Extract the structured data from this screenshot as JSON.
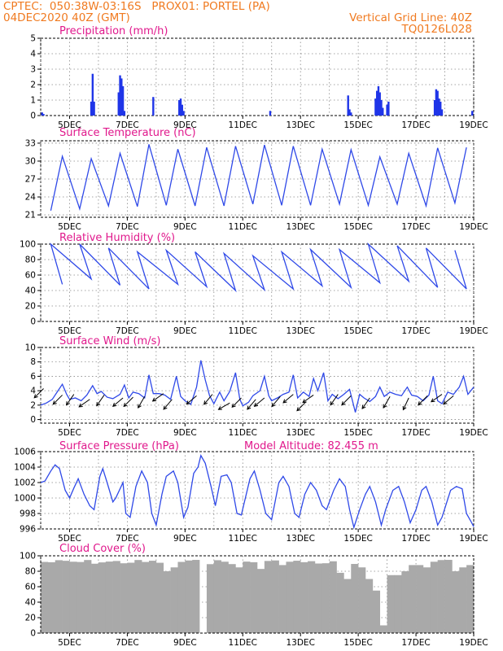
{
  "header": {
    "line1_left": "CPTEC:  050:38W-03:16S   PROX01: PORTEL (PA)",
    "line2_left": "04DEC2020 40Z (GMT)",
    "line2_right": "Vertical Grid Line: 40Z",
    "line3_right": "TQ0126L028"
  },
  "colors": {
    "header": "#f07a20",
    "title": "#e0188c",
    "line": "#2f49e8",
    "bar": "#1f35e8",
    "cloud": "#a9a9a9",
    "grid": "#888888"
  },
  "chart_data": [
    {
      "type": "bar",
      "title": "Precipitation (mm/h)",
      "xcategories": [
        "5DEC",
        "7DEC",
        "9DEC",
        "11DEC",
        "13DEC",
        "15DEC",
        "17DEC",
        "19DEC"
      ],
      "ylim": [
        0,
        5
      ],
      "yticks": [
        0,
        1,
        2,
        3,
        4,
        5
      ],
      "t_range": [
        4.0,
        19.0
      ],
      "bars": [
        [
          4.05,
          0.2
        ],
        [
          4.1,
          0.1
        ],
        [
          5.75,
          0.9
        ],
        [
          5.8,
          2.7
        ],
        [
          5.85,
          0.9
        ],
        [
          6.7,
          1.5
        ],
        [
          6.75,
          2.6
        ],
        [
          6.8,
          2.4
        ],
        [
          6.85,
          1.9
        ],
        [
          6.9,
          0.3
        ],
        [
          7.9,
          1.2
        ],
        [
          8.8,
          1.0
        ],
        [
          8.85,
          1.1
        ],
        [
          8.9,
          0.7
        ],
        [
          8.95,
          0.3
        ],
        [
          11.95,
          0.3
        ],
        [
          14.65,
          1.3
        ],
        [
          14.7,
          0.4
        ],
        [
          14.75,
          0.2
        ],
        [
          15.6,
          1.1
        ],
        [
          15.65,
          1.6
        ],
        [
          15.7,
          1.9
        ],
        [
          15.75,
          1.5
        ],
        [
          15.8,
          1.0
        ],
        [
          15.85,
          0.5
        ],
        [
          16.0,
          0.7
        ],
        [
          16.05,
          0.9
        ],
        [
          17.65,
          1.0
        ],
        [
          17.7,
          1.7
        ],
        [
          17.75,
          1.6
        ],
        [
          17.8,
          1.1
        ],
        [
          17.85,
          0.9
        ],
        [
          17.9,
          0.4
        ],
        [
          18.95,
          0.3
        ]
      ]
    },
    {
      "type": "line",
      "title": "Surface Temperature (nC)",
      "xcategories": [
        "5DEC",
        "7DEC",
        "9DEC",
        "11DEC",
        "13DEC",
        "15DEC",
        "17DEC",
        "19DEC"
      ],
      "ylim": [
        20.6,
        33.4
      ],
      "yticks": [
        21,
        24,
        27,
        30,
        33
      ],
      "t_range": [
        4.0,
        19.0
      ],
      "daily": {
        "start": 4.0,
        "mins": [
          21.7,
          22.0,
          22.5,
          22.4,
          22.6,
          22.5,
          22.5,
          22.8,
          22.6,
          22.6,
          22.8,
          22.6,
          22.8,
          22.5,
          23.0
        ],
        "maxs": [
          30.8,
          30.4,
          31.3,
          32.8,
          32.0,
          32.3,
          32.5,
          32.7,
          32.5,
          32.0,
          31.9,
          30.7,
          31.3,
          32.2,
          32.3
        ],
        "min_phase": 0.35,
        "max_phase": 0.75
      },
      "points": []
    },
    {
      "type": "line",
      "title": "Relative Humidity (%)",
      "xcategories": [
        "5DEC",
        "7DEC",
        "9DEC",
        "11DEC",
        "13DEC",
        "15DEC",
        "17DEC",
        "19DEC"
      ],
      "ylim": [
        0,
        100
      ],
      "yticks": [
        0,
        20,
        40,
        60,
        80,
        100
      ],
      "t_range": [
        4.0,
        19.0
      ],
      "daily": {
        "start": 4.0,
        "mins": [
          48,
          55,
          47,
          42,
          48,
          45,
          40,
          41,
          42,
          46,
          44,
          50,
          52,
          44,
          42
        ],
        "maxs": [
          100,
          100,
          95,
          90,
          92,
          90,
          88,
          85,
          90,
          93,
          93,
          100,
          98,
          95,
          92
        ],
        "min_phase": 0.75,
        "max_phase": 0.35
      },
      "points": []
    },
    {
      "type": "line",
      "title": "Surface Wind (m/s)",
      "xcategories": [
        "5DEC",
        "7DEC",
        "9DEC",
        "11DEC",
        "13DEC",
        "15DEC",
        "17DEC",
        "19DEC"
      ],
      "ylim": [
        -0.5,
        10
      ],
      "yticks": [
        0,
        2,
        4,
        6,
        8,
        10
      ],
      "t_range": [
        4.0,
        19.0
      ],
      "points": [
        [
          4.0,
          2.0
        ],
        [
          4.2,
          2.3
        ],
        [
          4.4,
          2.8
        ],
        [
          4.6,
          4.0
        ],
        [
          4.75,
          4.9
        ],
        [
          4.9,
          3.5
        ],
        [
          5.0,
          2.8
        ],
        [
          5.2,
          3.0
        ],
        [
          5.4,
          2.6
        ],
        [
          5.6,
          3.4
        ],
        [
          5.8,
          4.7
        ],
        [
          5.95,
          3.6
        ],
        [
          6.1,
          3.9
        ],
        [
          6.3,
          3.1
        ],
        [
          6.5,
          2.9
        ],
        [
          6.75,
          3.5
        ],
        [
          6.9,
          4.8
        ],
        [
          7.05,
          3.0
        ],
        [
          7.2,
          3.8
        ],
        [
          7.4,
          3.6
        ],
        [
          7.6,
          3.0
        ],
        [
          7.75,
          6.2
        ],
        [
          7.9,
          3.6
        ],
        [
          8.1,
          3.6
        ],
        [
          8.3,
          3.4
        ],
        [
          8.5,
          2.8
        ],
        [
          8.7,
          6.0
        ],
        [
          8.85,
          3.2
        ],
        [
          9.0,
          2.6
        ],
        [
          9.2,
          2.1
        ],
        [
          9.4,
          4.5
        ],
        [
          9.55,
          8.2
        ],
        [
          9.7,
          5.5
        ],
        [
          9.85,
          3.3
        ],
        [
          10.0,
          2.2
        ],
        [
          10.2,
          3.8
        ],
        [
          10.35,
          2.6
        ],
        [
          10.55,
          3.9
        ],
        [
          10.75,
          6.5
        ],
        [
          10.9,
          2.8
        ],
        [
          11.0,
          1.9
        ],
        [
          11.2,
          2.4
        ],
        [
          11.35,
          3.3
        ],
        [
          11.6,
          4.0
        ],
        [
          11.75,
          6.0
        ],
        [
          11.9,
          3.3
        ],
        [
          12.0,
          2.6
        ],
        [
          12.2,
          3.0
        ],
        [
          12.4,
          3.5
        ],
        [
          12.6,
          3.8
        ],
        [
          12.75,
          6.2
        ],
        [
          12.9,
          3.0
        ],
        [
          13.1,
          3.8
        ],
        [
          13.3,
          3.2
        ],
        [
          13.45,
          5.7
        ],
        [
          13.6,
          4.0
        ],
        [
          13.8,
          6.5
        ],
        [
          13.95,
          2.6
        ],
        [
          14.1,
          3.5
        ],
        [
          14.3,
          2.9
        ],
        [
          14.5,
          3.5
        ],
        [
          14.7,
          4.2
        ],
        [
          14.9,
          1.0
        ],
        [
          15.05,
          3.5
        ],
        [
          15.2,
          3.0
        ],
        [
          15.4,
          2.5
        ],
        [
          15.6,
          3.2
        ],
        [
          15.75,
          4.5
        ],
        [
          15.9,
          3.2
        ],
        [
          16.1,
          3.8
        ],
        [
          16.3,
          3.5
        ],
        [
          16.5,
          3.3
        ],
        [
          16.7,
          4.5
        ],
        [
          16.85,
          3.4
        ],
        [
          17.05,
          3.2
        ],
        [
          17.25,
          2.6
        ],
        [
          17.45,
          3.4
        ],
        [
          17.6,
          6.0
        ],
        [
          17.75,
          2.6
        ],
        [
          17.9,
          2.2
        ],
        [
          18.1,
          3.8
        ],
        [
          18.3,
          3.5
        ],
        [
          18.5,
          4.5
        ],
        [
          18.65,
          6.0
        ],
        [
          18.8,
          3.5
        ],
        [
          19.0,
          4.5
        ]
      ],
      "arrows": [
        [
          4.1,
          4.3,
          225
        ],
        [
          4.75,
          3.4,
          225
        ],
        [
          5.15,
          3.5,
          235
        ],
        [
          5.7,
          2.8,
          215
        ],
        [
          6.2,
          3.4,
          235
        ],
        [
          6.85,
          3.0,
          220
        ],
        [
          7.2,
          3.1,
          225
        ],
        [
          7.6,
          3.2,
          240
        ],
        [
          8.25,
          3.6,
          215
        ],
        [
          8.55,
          2.8,
          230
        ],
        [
          9.4,
          3.3,
          220
        ],
        [
          9.95,
          3.5,
          230
        ],
        [
          10.55,
          2.3,
          210
        ],
        [
          10.95,
          3.0,
          225
        ],
        [
          11.45,
          2.8,
          230
        ],
        [
          11.75,
          3.0,
          220
        ],
        [
          12.3,
          3.2,
          230
        ],
        [
          12.75,
          3.5,
          220
        ],
        [
          13.2,
          2.5,
          225
        ],
        [
          13.45,
          3.4,
          215
        ],
        [
          14.3,
          3.5,
          235
        ],
        [
          14.75,
          3.3,
          225
        ],
        [
          15.4,
          3.0,
          235
        ],
        [
          16.1,
          3.2,
          240
        ],
        [
          16.75,
          3.0,
          245
        ],
        [
          17.4,
          3.3,
          225
        ],
        [
          17.9,
          3.5,
          215
        ],
        [
          18.3,
          3.3,
          220
        ]
      ]
    },
    {
      "type": "line",
      "title": "Surface Pressure (hPa)",
      "annotation": "Model Altitude: 82.455 m",
      "xcategories": [
        "5DEC",
        "7DEC",
        "9DEC",
        "11DEC",
        "13DEC",
        "15DEC",
        "17DEC",
        "19DEC"
      ],
      "ylim": [
        996,
        1006
      ],
      "yticks": [
        996,
        998,
        1000,
        1002,
        1004,
        1006
      ],
      "t_range": [
        4.0,
        19.0
      ],
      "points": [
        [
          4.0,
          1002.0
        ],
        [
          4.15,
          1002.2
        ],
        [
          4.35,
          1003.5
        ],
        [
          4.5,
          1004.3
        ],
        [
          4.65,
          1003.8
        ],
        [
          4.85,
          1001.0
        ],
        [
          5.0,
          1000.0
        ],
        [
          5.15,
          1001.3
        ],
        [
          5.3,
          1002.5
        ],
        [
          5.5,
          1000.5
        ],
        [
          5.7,
          999.0
        ],
        [
          5.85,
          998.5
        ],
        [
          6.05,
          1002.8
        ],
        [
          6.15,
          1003.8
        ],
        [
          6.3,
          1002.0
        ],
        [
          6.5,
          999.5
        ],
        [
          6.6,
          1000.0
        ],
        [
          6.85,
          1002.0
        ],
        [
          6.95,
          998.0
        ],
        [
          7.1,
          997.5
        ],
        [
          7.3,
          1001.5
        ],
        [
          7.5,
          1003.5
        ],
        [
          7.7,
          1002.0
        ],
        [
          7.85,
          998.0
        ],
        [
          8.0,
          996.5
        ],
        [
          8.2,
          1000.5
        ],
        [
          8.35,
          1002.8
        ],
        [
          8.6,
          1003.5
        ],
        [
          8.75,
          1002.0
        ],
        [
          8.95,
          997.5
        ],
        [
          9.1,
          998.8
        ],
        [
          9.3,
          1003.2
        ],
        [
          9.45,
          1004.0
        ],
        [
          9.55,
          1005.5
        ],
        [
          9.7,
          1004.5
        ],
        [
          9.9,
          1001.5
        ],
        [
          10.05,
          999.0
        ],
        [
          10.25,
          1002.8
        ],
        [
          10.45,
          1003.0
        ],
        [
          10.6,
          1002.0
        ],
        [
          10.8,
          998.0
        ],
        [
          10.95,
          997.8
        ],
        [
          11.25,
          1002.5
        ],
        [
          11.4,
          1003.5
        ],
        [
          11.6,
          1001.0
        ],
        [
          11.8,
          998.0
        ],
        [
          12.0,
          997.2
        ],
        [
          12.25,
          1002.0
        ],
        [
          12.4,
          1002.8
        ],
        [
          12.6,
          1001.5
        ],
        [
          12.8,
          998.0
        ],
        [
          12.95,
          997.5
        ],
        [
          13.15,
          1000.5
        ],
        [
          13.35,
          1002.0
        ],
        [
          13.55,
          1001.0
        ],
        [
          13.75,
          999.0
        ],
        [
          13.9,
          998.5
        ],
        [
          14.15,
          1001.0
        ],
        [
          14.35,
          1002.5
        ],
        [
          14.55,
          1001.5
        ],
        [
          14.7,
          998.5
        ],
        [
          14.85,
          996.2
        ],
        [
          15.05,
          998.5
        ],
        [
          15.25,
          1000.5
        ],
        [
          15.4,
          1001.5
        ],
        [
          15.6,
          999.5
        ],
        [
          15.8,
          996.5
        ],
        [
          15.95,
          998.5
        ],
        [
          16.2,
          1001.0
        ],
        [
          16.4,
          1001.5
        ],
        [
          16.6,
          999.5
        ],
        [
          16.8,
          996.8
        ],
        [
          17.0,
          998.5
        ],
        [
          17.2,
          1001.0
        ],
        [
          17.35,
          1001.5
        ],
        [
          17.55,
          999.5
        ],
        [
          17.75,
          996.5
        ],
        [
          17.9,
          997.5
        ],
        [
          18.2,
          1001.0
        ],
        [
          18.4,
          1001.5
        ],
        [
          18.6,
          1001.2
        ],
        [
          18.75,
          998.0
        ],
        [
          18.9,
          997.0
        ],
        [
          19.0,
          996.3
        ]
      ]
    },
    {
      "type": "area",
      "title": "Cloud Cover (%)",
      "xcategories": [
        "5DEC",
        "7DEC",
        "9DEC",
        "11DEC",
        "13DEC",
        "15DEC",
        "17DEC",
        "19DEC"
      ],
      "ylim": [
        0,
        100
      ],
      "yticks": [
        0,
        20,
        40,
        60,
        80,
        100
      ],
      "t_range": [
        4.0,
        19.0
      ],
      "base_level": 95,
      "dips": [
        [
          8.25,
          80
        ],
        [
          8.4,
          85
        ],
        [
          9.55,
          0
        ],
        [
          10.65,
          85
        ],
        [
          10.85,
          88
        ],
        [
          11.4,
          85
        ],
        [
          11.6,
          83
        ],
        [
          12.3,
          88
        ],
        [
          13.5,
          90
        ],
        [
          14.15,
          78
        ],
        [
          14.4,
          70
        ],
        [
          14.6,
          72
        ],
        [
          14.95,
          85
        ],
        [
          15.25,
          70
        ],
        [
          15.4,
          55
        ],
        [
          15.55,
          60
        ],
        [
          15.7,
          10
        ],
        [
          15.85,
          55
        ],
        [
          16.1,
          75
        ],
        [
          16.55,
          80
        ],
        [
          16.9,
          88
        ],
        [
          17.3,
          85
        ],
        [
          18.2,
          80
        ],
        [
          18.55,
          85
        ],
        [
          18.85,
          88
        ]
      ]
    }
  ]
}
